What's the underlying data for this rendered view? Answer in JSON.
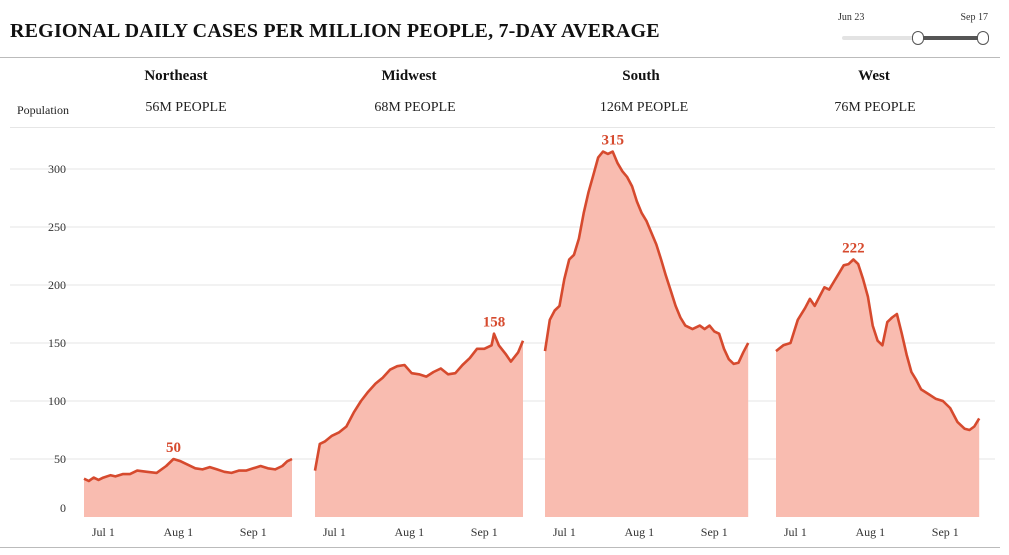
{
  "title": "REGIONAL DAILY CASES PER MILLION PEOPLE, 7-DAY AVERAGE",
  "slider": {
    "start_label": "Jun 23",
    "end_label": "Sep 17"
  },
  "population_label": "Population",
  "colors": {
    "line": "#d64a2e",
    "fill": "#f9bcb0",
    "label": "#d64a2e",
    "grid": "#e6e6e6"
  },
  "regions": [
    {
      "name": "Northeast",
      "population": "56M PEOPLE"
    },
    {
      "name": "Midwest",
      "population": "68M PEOPLE"
    },
    {
      "name": "South",
      "population": "126M PEOPLE"
    },
    {
      "name": "West",
      "population": "76M PEOPLE"
    }
  ],
  "chart_data": {
    "type": "area",
    "title": "REGIONAL DAILY CASES PER MILLION PEOPLE, 7-DAY AVERAGE",
    "xlabel": "",
    "ylabel": "",
    "x_range": [
      "Jun 23",
      "Sep 17"
    ],
    "ylim": [
      0,
      330
    ],
    "y_ticks": [
      0,
      50,
      100,
      150,
      200,
      250,
      300
    ],
    "x_ticks": [
      "Jul 1",
      "Aug 1",
      "Sep 1"
    ],
    "x_tick_days": [
      8,
      39,
      70
    ],
    "total_days": 86,
    "grid": true,
    "series": [
      {
        "name": "Northeast",
        "peak_label": "50",
        "peak_day": 37,
        "points": [
          [
            0,
            33
          ],
          [
            2,
            31
          ],
          [
            4,
            34
          ],
          [
            6,
            32
          ],
          [
            8,
            34
          ],
          [
            11,
            36
          ],
          [
            13,
            35
          ],
          [
            16,
            37
          ],
          [
            19,
            37
          ],
          [
            22,
            40
          ],
          [
            26,
            39
          ],
          [
            30,
            38
          ],
          [
            34,
            44
          ],
          [
            37,
            50
          ],
          [
            40,
            48
          ],
          [
            43,
            45
          ],
          [
            46,
            42
          ],
          [
            49,
            41
          ],
          [
            52,
            43
          ],
          [
            55,
            41
          ],
          [
            58,
            39
          ],
          [
            61,
            38
          ],
          [
            64,
            40
          ],
          [
            67,
            40
          ],
          [
            70,
            42
          ],
          [
            73,
            44
          ],
          [
            76,
            42
          ],
          [
            79,
            41
          ],
          [
            82,
            44
          ],
          [
            84,
            48
          ],
          [
            86,
            50
          ]
        ]
      },
      {
        "name": "Midwest",
        "peak_label": "158",
        "peak_day": 74,
        "points": [
          [
            0,
            40
          ],
          [
            2,
            63
          ],
          [
            4,
            65
          ],
          [
            7,
            70
          ],
          [
            10,
            73
          ],
          [
            13,
            78
          ],
          [
            16,
            90
          ],
          [
            19,
            100
          ],
          [
            22,
            108
          ],
          [
            25,
            115
          ],
          [
            28,
            120
          ],
          [
            31,
            127
          ],
          [
            34,
            130
          ],
          [
            37,
            131
          ],
          [
            40,
            124
          ],
          [
            43,
            123
          ],
          [
            46,
            121
          ],
          [
            49,
            125
          ],
          [
            52,
            128
          ],
          [
            55,
            123
          ],
          [
            58,
            124
          ],
          [
            61,
            131
          ],
          [
            64,
            137
          ],
          [
            67,
            145
          ],
          [
            70,
            145
          ],
          [
            73,
            148
          ],
          [
            74,
            158
          ],
          [
            76,
            148
          ],
          [
            79,
            140
          ],
          [
            81,
            134
          ],
          [
            84,
            142
          ],
          [
            86,
            152
          ]
        ]
      },
      {
        "name": "South",
        "peak_label": "315",
        "peak_day": 28,
        "points": [
          [
            0,
            143
          ],
          [
            2,
            170
          ],
          [
            4,
            178
          ],
          [
            6,
            182
          ],
          [
            8,
            205
          ],
          [
            10,
            222
          ],
          [
            12,
            226
          ],
          [
            14,
            240
          ],
          [
            16,
            262
          ],
          [
            18,
            280
          ],
          [
            20,
            295
          ],
          [
            22,
            310
          ],
          [
            24,
            315
          ],
          [
            26,
            313
          ],
          [
            28,
            315
          ],
          [
            30,
            305
          ],
          [
            32,
            298
          ],
          [
            34,
            293
          ],
          [
            36,
            285
          ],
          [
            38,
            272
          ],
          [
            40,
            262
          ],
          [
            42,
            255
          ],
          [
            44,
            245
          ],
          [
            46,
            235
          ],
          [
            48,
            222
          ],
          [
            50,
            208
          ],
          [
            52,
            195
          ],
          [
            54,
            182
          ],
          [
            56,
            172
          ],
          [
            58,
            165
          ],
          [
            61,
            162
          ],
          [
            64,
            165
          ],
          [
            66,
            162
          ],
          [
            68,
            165
          ],
          [
            70,
            160
          ],
          [
            72,
            158
          ],
          [
            74,
            145
          ],
          [
            76,
            136
          ],
          [
            78,
            132
          ],
          [
            80,
            133
          ],
          [
            82,
            142
          ],
          [
            84,
            150
          ]
        ]
      },
      {
        "name": "West",
        "peak_label": "222",
        "peak_day": 32,
        "points": [
          [
            0,
            143
          ],
          [
            3,
            148
          ],
          [
            6,
            150
          ],
          [
            9,
            170
          ],
          [
            12,
            180
          ],
          [
            14,
            188
          ],
          [
            16,
            182
          ],
          [
            18,
            190
          ],
          [
            20,
            198
          ],
          [
            22,
            196
          ],
          [
            24,
            203
          ],
          [
            26,
            210
          ],
          [
            28,
            217
          ],
          [
            30,
            218
          ],
          [
            32,
            222
          ],
          [
            34,
            218
          ],
          [
            36,
            205
          ],
          [
            38,
            190
          ],
          [
            40,
            165
          ],
          [
            42,
            152
          ],
          [
            44,
            148
          ],
          [
            46,
            168
          ],
          [
            48,
            172
          ],
          [
            50,
            175
          ],
          [
            52,
            158
          ],
          [
            54,
            140
          ],
          [
            56,
            125
          ],
          [
            58,
            118
          ],
          [
            60,
            110
          ],
          [
            63,
            106
          ],
          [
            66,
            102
          ],
          [
            69,
            100
          ],
          [
            72,
            94
          ],
          [
            75,
            82
          ],
          [
            78,
            76
          ],
          [
            80,
            75
          ],
          [
            82,
            78
          ],
          [
            84,
            85
          ]
        ]
      }
    ]
  }
}
